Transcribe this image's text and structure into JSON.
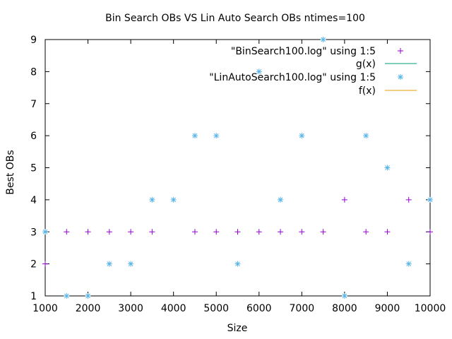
{
  "chart_data": {
    "type": "scatter",
    "title": "Bin Search OBs VS Lin Auto Search OBs ntimes=100",
    "xlabel": "Size",
    "ylabel": "Best OBs",
    "xlim": [
      1000,
      10000
    ],
    "ylim": [
      1,
      9
    ],
    "xticks": [
      1000,
      2000,
      3000,
      4000,
      5000,
      6000,
      7000,
      8000,
      9000,
      10000
    ],
    "yticks": [
      1,
      2,
      3,
      4,
      5,
      6,
      7,
      8,
      9
    ],
    "grid": false,
    "legend_position": "top-right",
    "legend": [
      {
        "label": "\"BinSearch100.log\" using 1:5",
        "kind": "point",
        "marker": "plus",
        "color": "#9400d3"
      },
      {
        "label": "g(x)",
        "kind": "line",
        "color": "#009e73"
      },
      {
        "label": "\"LinAutoSearch100.log\" using 1:5",
        "kind": "point",
        "marker": "star",
        "color": "#56b4e9"
      },
      {
        "label": "f(x)",
        "kind": "line",
        "color": "#e69f00"
      }
    ],
    "series": [
      {
        "name": "\"BinSearch100.log\" using 1:5",
        "marker": "plus",
        "color": "#9400d3",
        "x": [
          1000,
          1500,
          2000,
          2500,
          3000,
          3500,
          4500,
          5000,
          5500,
          6000,
          6500,
          7000,
          7500,
          8000,
          8500,
          9000,
          9500,
          10000
        ],
        "y": [
          2,
          3,
          3,
          3,
          3,
          3,
          3,
          3,
          3,
          3,
          3,
          3,
          3,
          4,
          3,
          3,
          4,
          3
        ]
      },
      {
        "name": "\"LinAutoSearch100.log\" using 1:5",
        "marker": "star",
        "color": "#56b4e9",
        "x": [
          1000,
          1500,
          2000,
          2500,
          3000,
          3500,
          4000,
          4500,
          5000,
          5500,
          6000,
          6500,
          7000,
          7500,
          8000,
          8500,
          9000,
          9500,
          10000
        ],
        "y": [
          3,
          1,
          1,
          2,
          2,
          4,
          4,
          6,
          6,
          2,
          8,
          4,
          6,
          9,
          1,
          6,
          5,
          2,
          4
        ]
      }
    ]
  }
}
